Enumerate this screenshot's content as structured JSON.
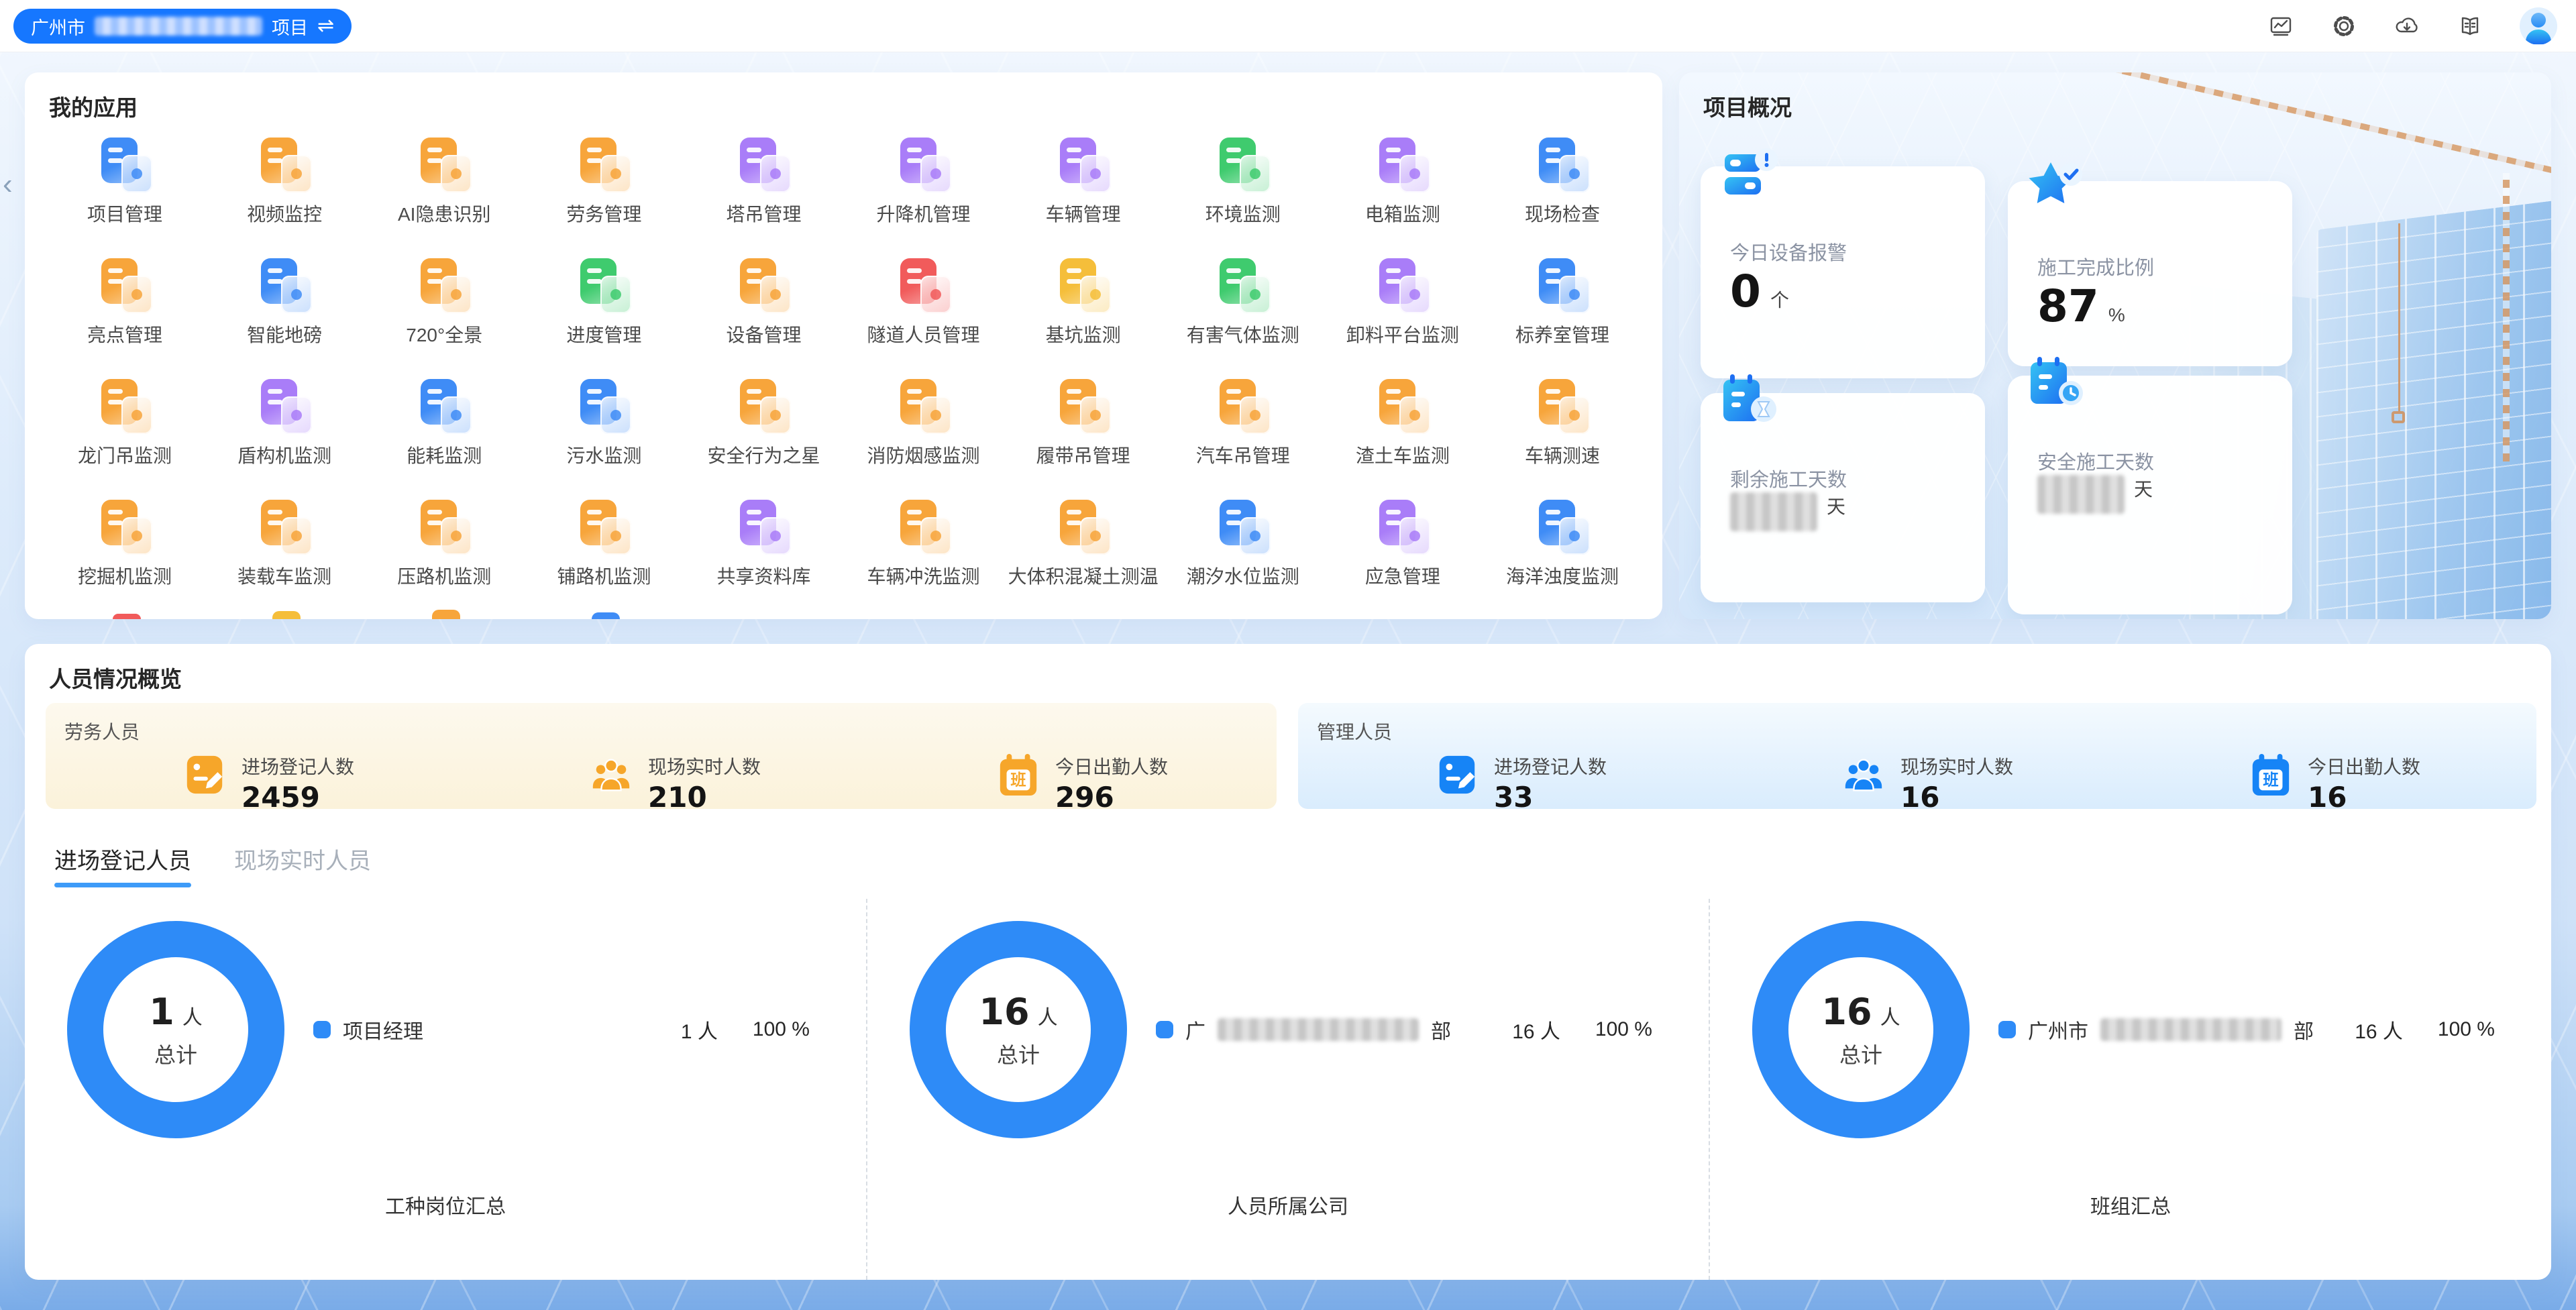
{
  "colors": {
    "accent": "#1677FF",
    "donut": "#2E8BF7",
    "tab_underline": "#3D9BF8",
    "labor_icon": "#F6A62A",
    "mgmt_icon": "#1684F6",
    "palette": {
      "blue": {
        "c": "#3F8CF6",
        "t": "rgba(63,140,246,0.28)"
      },
      "orange": {
        "c": "#F7A53B",
        "t": "rgba(247,165,59,0.30)"
      },
      "purple": {
        "c": "#A97DF8",
        "t": "rgba(169,125,248,0.30)"
      },
      "green": {
        "c": "#3FCB6E",
        "t": "rgba(63,203,110,0.30)"
      },
      "red": {
        "c": "#F15B5B",
        "t": "rgba(241,91,91,0.30)"
      },
      "yellow": {
        "c": "#F5BE3A",
        "t": "rgba(245,190,58,0.32)"
      }
    }
  },
  "topbar": {
    "project": {
      "prefix": "广州市",
      "suffix": "项目"
    },
    "swap_icon": "⇌",
    "scroll_hint": "‹"
  },
  "apps": {
    "title": "我的应用",
    "items": [
      {
        "label": "项目管理",
        "color": "blue"
      },
      {
        "label": "视频监控",
        "color": "orange"
      },
      {
        "label": "AI隐患识别",
        "color": "orange"
      },
      {
        "label": "劳务管理",
        "color": "orange"
      },
      {
        "label": "塔吊管理",
        "color": "purple"
      },
      {
        "label": "升降机管理",
        "color": "purple"
      },
      {
        "label": "车辆管理",
        "color": "purple"
      },
      {
        "label": "环境监测",
        "color": "green"
      },
      {
        "label": "电箱监测",
        "color": "purple"
      },
      {
        "label": "现场检查",
        "color": "blue"
      },
      {
        "label": "亮点管理",
        "color": "orange"
      },
      {
        "label": "智能地磅",
        "color": "blue"
      },
      {
        "label": "720°全景",
        "color": "orange"
      },
      {
        "label": "进度管理",
        "color": "green"
      },
      {
        "label": "设备管理",
        "color": "orange"
      },
      {
        "label": "隧道人员管理",
        "color": "red"
      },
      {
        "label": "基坑监测",
        "color": "yellow"
      },
      {
        "label": "有害气体监测",
        "color": "green"
      },
      {
        "label": "卸料平台监测",
        "color": "purple"
      },
      {
        "label": "标养室管理",
        "color": "blue"
      },
      {
        "label": "龙门吊监测",
        "color": "orange"
      },
      {
        "label": "盾构机监测",
        "color": "purple"
      },
      {
        "label": "能耗监测",
        "color": "blue"
      },
      {
        "label": "污水监测",
        "color": "blue"
      },
      {
        "label": "安全行为之星",
        "color": "orange"
      },
      {
        "label": "消防烟感监测",
        "color": "orange"
      },
      {
        "label": "履带吊管理",
        "color": "orange"
      },
      {
        "label": "汽车吊管理",
        "color": "orange"
      },
      {
        "label": "渣土车监测",
        "color": "orange"
      },
      {
        "label": "车辆测速",
        "color": "orange"
      },
      {
        "label": "挖掘机监测",
        "color": "orange"
      },
      {
        "label": "装载车监测",
        "color": "orange"
      },
      {
        "label": "压路机监测",
        "color": "orange"
      },
      {
        "label": "铺路机监测",
        "color": "orange"
      },
      {
        "label": "共享资料库",
        "color": "purple"
      },
      {
        "label": "车辆冲洗监测",
        "color": "orange"
      },
      {
        "label": "大体积混凝土测温",
        "color": "orange"
      },
      {
        "label": "潮汐水位监测",
        "color": "blue"
      },
      {
        "label": "应急管理",
        "color": "purple"
      },
      {
        "label": "海洋浊度监测",
        "color": "blue"
      }
    ],
    "partial_next_row": [
      "red",
      "yellow",
      "orange",
      "blue"
    ]
  },
  "overview": {
    "title": "项目概况",
    "cards": [
      {
        "label": "今日设备报警",
        "value": "0",
        "unit": "个",
        "redacted": false
      },
      {
        "label": "施工完成比例",
        "value": "87",
        "unit": "%",
        "redacted": false
      },
      {
        "label": "剩余施工天数",
        "value": "",
        "unit": "天",
        "redacted": true
      },
      {
        "label": "安全施工天数",
        "value": "",
        "unit": "天",
        "redacted": true
      }
    ]
  },
  "personnel": {
    "title": "人员情况概览",
    "attendance_glyph": "班",
    "groups": [
      {
        "title": "劳务人员",
        "stats": [
          {
            "label": "进场登记人数",
            "value": "2459"
          },
          {
            "label": "现场实时人数",
            "value": "210"
          },
          {
            "label": "今日出勤人数",
            "value": "296"
          }
        ]
      },
      {
        "title": "管理人员",
        "stats": [
          {
            "label": "进场登记人数",
            "value": "33"
          },
          {
            "label": "现场实时人数",
            "value": "16"
          },
          {
            "label": "今日出勤人数",
            "value": "16"
          }
        ]
      }
    ],
    "tabs": [
      {
        "label": "进场登记人员"
      },
      {
        "label": "现场实时人员"
      }
    ],
    "charts": [
      {
        "total": "1",
        "unit": "人",
        "center": "总计",
        "legend_name": "项目经理",
        "legend_prefix": "",
        "legend_suffix": "",
        "value": "1 人",
        "percent": "100 %",
        "footer": "工种岗位汇总"
      },
      {
        "total": "16",
        "unit": "人",
        "center": "总计",
        "legend_name": "",
        "legend_prefix": "广",
        "legend_suffix": "部",
        "value": "16 人",
        "percent": "100 %",
        "footer": "人员所属公司"
      },
      {
        "total": "16",
        "unit": "人",
        "center": "总计",
        "legend_name": "",
        "legend_prefix": "广州市",
        "legend_suffix": "部",
        "value": "16 人",
        "percent": "100 %",
        "footer": "班组汇总"
      }
    ]
  },
  "chart_data": [
    {
      "type": "pie",
      "title": "工种岗位汇总",
      "labels": [
        "项目经理"
      ],
      "values": [
        1
      ],
      "percents": [
        100
      ],
      "unit": "人",
      "total": 1,
      "legend_position": "right"
    },
    {
      "type": "pie",
      "title": "人员所属公司",
      "labels": [
        "广…部"
      ],
      "values": [
        16
      ],
      "percents": [
        100
      ],
      "unit": "人",
      "total": 16,
      "legend_position": "right"
    },
    {
      "type": "pie",
      "title": "班组汇总",
      "labels": [
        "广州市…部"
      ],
      "values": [
        16
      ],
      "percents": [
        100
      ],
      "unit": "人",
      "total": 16,
      "legend_position": "right"
    }
  ]
}
